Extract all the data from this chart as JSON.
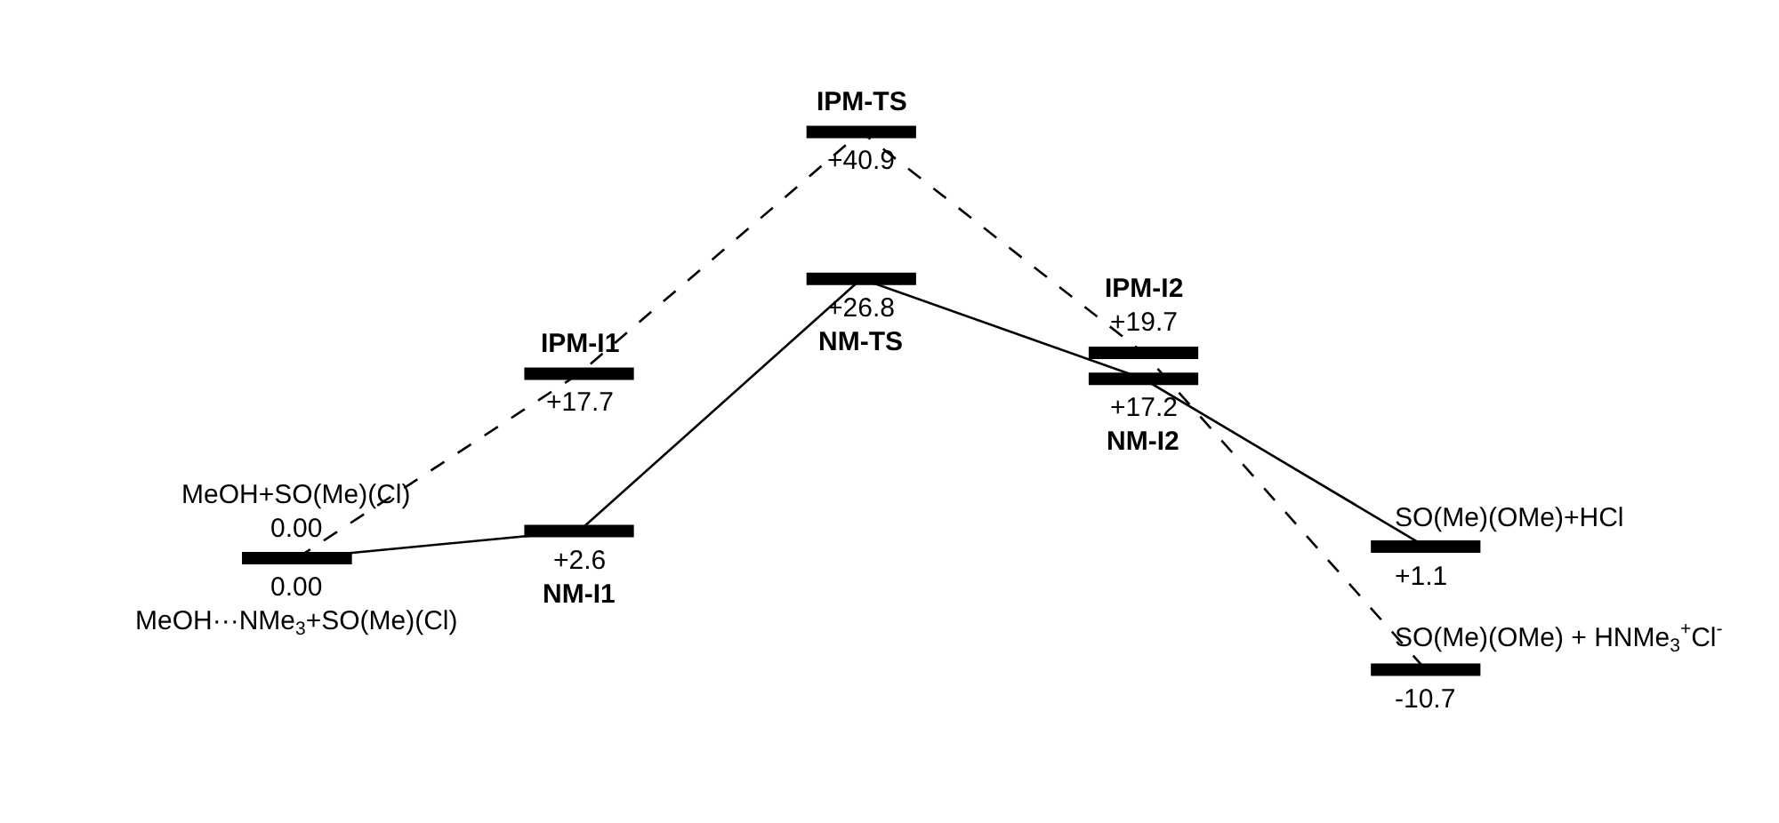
{
  "chart_data": {
    "type": "line",
    "categories": [
      null,
      null,
      null,
      null,
      null
    ],
    "series": [
      {
        "color": "#000000",
        "line_style": "dashed",
        "values": [
          0,
          17.7,
          40.9,
          19.7,
          -10.7
        ],
        "value_labels": [
          "0.00",
          "+17.7",
          "+40.9",
          "+19.7",
          "-10.7"
        ]
      },
      {
        "color": "#000000",
        "line_style": "solid",
        "values": [
          0,
          2.6,
          26.8,
          17.2,
          1.1
        ],
        "value_labels": [
          "0.00",
          "+2.6",
          "+26.8",
          "+17.2",
          "+1.1"
        ]
      }
    ],
    "annotations": [
      "MeOH+SO(Me)(Cl)",
      "MeOH···NMe$_{3}$+SO(Me)(Cl)",
      "IPM-I1",
      "NM-I1",
      "IPM-TS",
      "NM-TS",
      "IPM-I2",
      "NM-I2",
      "SO(Me)(OMe) + HNMe$_{3}$$^{+}$Cl$^{-}$",
      "SO(Me)(OMe)+HCl"
    ],
    "legend": false
  }
}
